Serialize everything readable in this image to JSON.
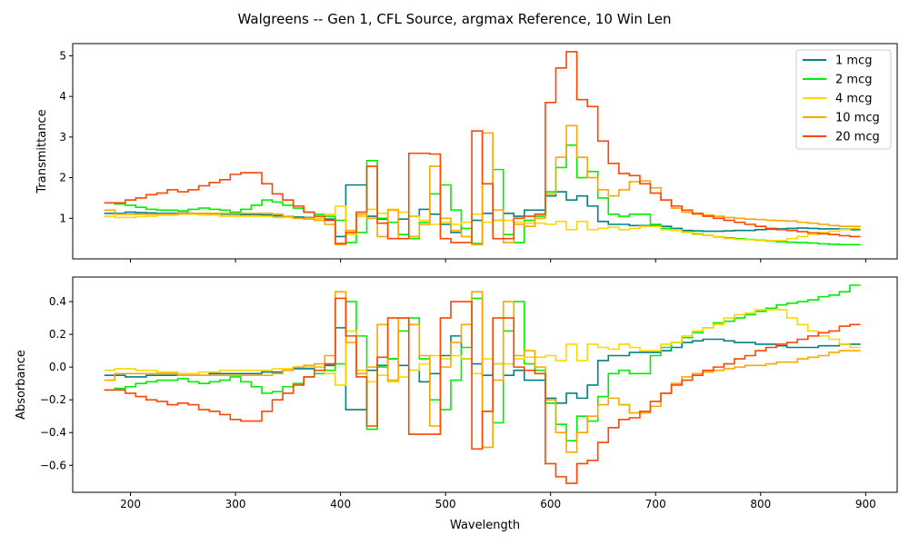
{
  "figure_title": "Walgreens -- Gen 1, CFL Source, argmax Reference, 10 Win Len",
  "chart_data": [
    {
      "type": "line",
      "step": true,
      "xlabel": "",
      "ylabel": "Transmittance",
      "xlim": [
        145,
        930
      ],
      "ylim": [
        0.0,
        5.3
      ],
      "xticks": [
        200,
        300,
        400,
        500,
        600,
        700,
        800,
        900
      ],
      "show_xtick_labels": false,
      "yticks": [
        1,
        2,
        3,
        4,
        5
      ],
      "grid": false,
      "legend": "top-right",
      "x": [
        180,
        190,
        200,
        210,
        220,
        230,
        240,
        250,
        260,
        270,
        280,
        290,
        300,
        310,
        320,
        330,
        340,
        350,
        360,
        370,
        380,
        390,
        400,
        410,
        420,
        430,
        440,
        450,
        460,
        470,
        480,
        490,
        500,
        510,
        520,
        530,
        540,
        550,
        560,
        570,
        580,
        590,
        600,
        610,
        620,
        630,
        640,
        650,
        660,
        670,
        680,
        690,
        700,
        710,
        720,
        730,
        740,
        750,
        760,
        770,
        780,
        790,
        800,
        810,
        820,
        830,
        840,
        850,
        860,
        870,
        880,
        890
      ],
      "series": [
        {
          "name": "1 mcg",
          "color": "#008080",
          "values": [
            1.12,
            1.12,
            1.15,
            1.14,
            1.13,
            1.12,
            1.12,
            1.13,
            1.12,
            1.12,
            1.1,
            1.1,
            1.1,
            1.09,
            1.09,
            1.08,
            1.06,
            1.04,
            1.03,
            1.02,
            1.0,
            0.98,
            0.55,
            1.82,
            1.82,
            1.05,
            0.98,
            0.9,
            0.98,
            1.05,
            1.22,
            1.1,
            0.85,
            0.65,
            0.9,
            0.95,
            1.12,
            0.95,
            1.12,
            1.05,
            1.2,
            1.2,
            1.55,
            1.65,
            1.45,
            1.55,
            1.3,
            0.92,
            0.85,
            0.85,
            0.82,
            0.82,
            0.82,
            0.8,
            0.75,
            0.7,
            0.69,
            0.68,
            0.68,
            0.69,
            0.7,
            0.7,
            0.72,
            0.73,
            0.74,
            0.75,
            0.76,
            0.75,
            0.74,
            0.74,
            0.73,
            0.72
          ]
        },
        {
          "name": "2 mcg",
          "color": "#00ee00",
          "values": [
            1.38,
            1.35,
            1.32,
            1.27,
            1.22,
            1.2,
            1.2,
            1.18,
            1.22,
            1.25,
            1.22,
            1.2,
            1.15,
            1.22,
            1.32,
            1.45,
            1.4,
            1.32,
            1.25,
            1.15,
            1.1,
            1.05,
            0.95,
            0.4,
            0.65,
            2.42,
            1.0,
            0.9,
            0.6,
            0.5,
            0.9,
            1.6,
            1.82,
            1.2,
            0.75,
            0.38,
            1.85,
            2.2,
            0.6,
            0.4,
            0.95,
            1.05,
            1.65,
            2.25,
            2.8,
            2.0,
            2.15,
            1.5,
            1.1,
            1.05,
            1.1,
            1.1,
            0.85,
            0.75,
            0.7,
            0.66,
            0.62,
            0.58,
            0.54,
            0.52,
            0.5,
            0.48,
            0.46,
            0.44,
            0.42,
            0.41,
            0.4,
            0.39,
            0.37,
            0.36,
            0.35,
            0.35
          ]
        },
        {
          "name": "4 mcg",
          "color": "#ffd700",
          "values": [
            1.05,
            1.02,
            1.02,
            1.04,
            1.05,
            1.08,
            1.08,
            1.1,
            1.1,
            1.08,
            1.08,
            1.05,
            1.05,
            1.05,
            1.05,
            1.05,
            1.02,
            1.02,
            1.0,
            1.0,
            1.0,
            1.1,
            1.3,
            0.6,
            1.05,
            1.22,
            1.12,
            1.22,
            1.15,
            1.05,
            0.95,
            0.85,
            0.9,
            0.85,
            0.9,
            1.1,
            0.9,
            0.95,
            0.95,
            0.9,
            0.88,
            0.88,
            0.85,
            0.92,
            0.72,
            0.92,
            0.72,
            0.75,
            0.78,
            0.72,
            0.75,
            0.8,
            0.8,
            0.72,
            0.7,
            0.65,
            0.6,
            0.58,
            0.55,
            0.5,
            0.48,
            0.47,
            0.45,
            0.45,
            0.45,
            0.5,
            0.55,
            0.6,
            0.65,
            0.68,
            0.72,
            0.75
          ]
        },
        {
          "name": "10 mcg",
          "color": "#ffa500",
          "values": [
            1.2,
            1.1,
            1.1,
            1.1,
            1.1,
            1.1,
            1.1,
            1.12,
            1.12,
            1.12,
            1.12,
            1.12,
            1.12,
            1.12,
            1.12,
            1.12,
            1.1,
            1.05,
            1.0,
            0.98,
            0.95,
            0.85,
            0.35,
            0.7,
            1.1,
            1.0,
            0.55,
            1.2,
            0.5,
            0.55,
            0.85,
            2.28,
            1.0,
            0.7,
            0.55,
            0.35,
            3.1,
            1.2,
            0.4,
            0.85,
            0.8,
            1.0,
            1.6,
            2.5,
            3.28,
            2.5,
            2.0,
            1.7,
            1.55,
            1.7,
            1.9,
            1.92,
            1.75,
            1.45,
            1.25,
            1.15,
            1.1,
            1.08,
            1.05,
            1.02,
            1.0,
            0.98,
            0.97,
            0.95,
            0.94,
            0.93,
            0.9,
            0.88,
            0.85,
            0.82,
            0.8,
            0.8
          ]
        },
        {
          "name": "20 mcg",
          "color": "#ff4500",
          "values": [
            1.38,
            1.38,
            1.45,
            1.5,
            1.58,
            1.62,
            1.7,
            1.65,
            1.7,
            1.8,
            1.88,
            1.95,
            2.08,
            2.12,
            2.12,
            1.85,
            1.6,
            1.45,
            1.3,
            1.15,
            1.05,
            0.95,
            0.38,
            0.65,
            1.15,
            2.28,
            0.88,
            0.5,
            0.5,
            2.6,
            2.6,
            2.58,
            0.5,
            0.4,
            0.4,
            3.15,
            1.85,
            0.5,
            0.5,
            1.0,
            1.05,
            1.1,
            3.85,
            4.7,
            5.1,
            3.92,
            3.75,
            2.9,
            2.35,
            2.1,
            2.05,
            1.85,
            1.62,
            1.45,
            1.3,
            1.2,
            1.12,
            1.05,
            1.0,
            0.95,
            0.9,
            0.85,
            0.8,
            0.75,
            0.72,
            0.7,
            0.67,
            0.64,
            0.62,
            0.6,
            0.57,
            0.55
          ]
        }
      ]
    },
    {
      "type": "line",
      "step": true,
      "xlabel": "Wavelength",
      "ylabel": "Absorbance",
      "xlim": [
        145,
        930
      ],
      "ylim": [
        -0.765,
        0.55
      ],
      "xticks": [
        200,
        300,
        400,
        500,
        600,
        700,
        800,
        900
      ],
      "xtick_labels": [
        "200",
        "300",
        "400",
        "500",
        "600",
        "700",
        "800",
        "900"
      ],
      "yticks": [
        -0.6,
        -0.4,
        -0.2,
        0.0,
        0.2,
        0.4
      ],
      "ytick_labels": [
        "−0.6",
        "−0.4",
        "−0.2",
        "0.0",
        "0.2",
        "0.4"
      ],
      "grid": false,
      "x": [
        180,
        190,
        200,
        210,
        220,
        230,
        240,
        250,
        260,
        270,
        280,
        290,
        300,
        310,
        320,
        330,
        340,
        350,
        360,
        370,
        380,
        390,
        400,
        410,
        420,
        430,
        440,
        450,
        460,
        470,
        480,
        490,
        500,
        510,
        520,
        530,
        540,
        550,
        560,
        570,
        580,
        590,
        600,
        610,
        620,
        630,
        640,
        650,
        660,
        670,
        680,
        690,
        700,
        710,
        720,
        730,
        740,
        750,
        760,
        770,
        780,
        790,
        800,
        810,
        820,
        830,
        840,
        850,
        860,
        870,
        880,
        890
      ],
      "series": [
        {
          "name": "1 mcg",
          "color": "#008080",
          "values": [
            -0.05,
            -0.05,
            -0.06,
            -0.06,
            -0.05,
            -0.05,
            -0.05,
            -0.05,
            -0.05,
            -0.05,
            -0.04,
            -0.04,
            -0.04,
            -0.04,
            -0.04,
            -0.03,
            -0.03,
            -0.02,
            -0.01,
            -0.01,
            0.0,
            0.01,
            0.24,
            -0.26,
            -0.26,
            -0.02,
            0.01,
            0.05,
            0.01,
            -0.02,
            -0.09,
            -0.04,
            0.07,
            0.19,
            0.05,
            0.02,
            -0.05,
            0.02,
            -0.05,
            -0.02,
            -0.08,
            -0.08,
            -0.19,
            -0.22,
            -0.16,
            -0.19,
            -0.11,
            0.04,
            0.07,
            0.07,
            0.09,
            0.09,
            0.09,
            0.1,
            0.12,
            0.15,
            0.16,
            0.17,
            0.17,
            0.16,
            0.15,
            0.15,
            0.14,
            0.14,
            0.13,
            0.12,
            0.12,
            0.12,
            0.13,
            0.13,
            0.14,
            0.14
          ]
        },
        {
          "name": "2 mcg",
          "color": "#00ee00",
          "values": [
            -0.14,
            -0.13,
            -0.12,
            -0.1,
            -0.09,
            -0.08,
            -0.08,
            -0.07,
            -0.09,
            -0.1,
            -0.09,
            -0.08,
            -0.06,
            -0.09,
            -0.12,
            -0.16,
            -0.15,
            -0.12,
            -0.1,
            -0.06,
            -0.04,
            -0.02,
            0.02,
            0.4,
            0.19,
            -0.38,
            0.0,
            0.05,
            0.22,
            0.3,
            0.05,
            -0.2,
            -0.26,
            -0.08,
            0.12,
            0.42,
            -0.27,
            -0.34,
            0.22,
            0.4,
            0.02,
            -0.02,
            -0.22,
            -0.35,
            -0.45,
            -0.3,
            -0.33,
            -0.18,
            -0.04,
            -0.02,
            -0.04,
            -0.04,
            0.07,
            0.12,
            0.15,
            0.18,
            0.21,
            0.24,
            0.27,
            0.28,
            0.3,
            0.32,
            0.34,
            0.36,
            0.38,
            0.39,
            0.4,
            0.41,
            0.43,
            0.44,
            0.46,
            0.5
          ]
        },
        {
          "name": "4 mcg",
          "color": "#ffd700",
          "values": [
            -0.02,
            -0.01,
            -0.01,
            -0.02,
            -0.02,
            -0.03,
            -0.03,
            -0.04,
            -0.04,
            -0.03,
            -0.03,
            -0.02,
            -0.02,
            -0.02,
            -0.02,
            -0.02,
            -0.01,
            -0.01,
            0.0,
            0.0,
            0.0,
            -0.04,
            -0.11,
            0.22,
            -0.02,
            -0.09,
            -0.05,
            -0.09,
            -0.06,
            -0.02,
            0.02,
            0.07,
            0.05,
            0.07,
            0.05,
            -0.04,
            0.05,
            0.02,
            0.02,
            0.05,
            0.06,
            0.06,
            0.07,
            0.04,
            0.14,
            0.04,
            0.14,
            0.12,
            0.11,
            0.14,
            0.12,
            0.1,
            0.1,
            0.14,
            0.15,
            0.19,
            0.22,
            0.24,
            0.26,
            0.3,
            0.32,
            0.33,
            0.35,
            0.35,
            0.35,
            0.3,
            0.26,
            0.22,
            0.19,
            0.17,
            0.14,
            0.12
          ]
        },
        {
          "name": "10 mcg",
          "color": "#ffa500",
          "values": [
            -0.08,
            -0.04,
            -0.04,
            -0.04,
            -0.04,
            -0.04,
            -0.04,
            -0.05,
            -0.05,
            -0.05,
            -0.05,
            -0.05,
            -0.05,
            -0.05,
            -0.05,
            -0.05,
            -0.04,
            -0.02,
            0.0,
            0.01,
            0.02,
            0.07,
            0.46,
            0.15,
            -0.04,
            0.0,
            0.26,
            -0.08,
            0.3,
            0.26,
            0.07,
            -0.36,
            0.0,
            0.15,
            0.26,
            0.46,
            -0.49,
            -0.08,
            0.4,
            0.07,
            0.1,
            0.0,
            -0.2,
            -0.4,
            -0.52,
            -0.4,
            -0.3,
            -0.23,
            -0.19,
            -0.23,
            -0.28,
            -0.28,
            -0.24,
            -0.16,
            -0.1,
            -0.06,
            -0.04,
            -0.03,
            -0.02,
            -0.01,
            0.0,
            0.01,
            0.01,
            0.02,
            0.03,
            0.03,
            0.05,
            0.06,
            0.07,
            0.09,
            0.1,
            0.1
          ]
        },
        {
          "name": "20 mcg",
          "color": "#ff4500",
          "values": [
            -0.14,
            -0.14,
            -0.16,
            -0.18,
            -0.2,
            -0.21,
            -0.23,
            -0.22,
            -0.23,
            -0.26,
            -0.27,
            -0.29,
            -0.32,
            -0.33,
            -0.33,
            -0.27,
            -0.2,
            -0.16,
            -0.11,
            -0.06,
            -0.02,
            0.02,
            0.42,
            0.19,
            -0.06,
            -0.36,
            0.06,
            0.3,
            0.3,
            -0.41,
            -0.41,
            -0.41,
            0.3,
            0.4,
            0.4,
            -0.5,
            -0.27,
            0.3,
            0.3,
            0.0,
            -0.02,
            -0.04,
            -0.59,
            -0.67,
            -0.71,
            -0.59,
            -0.57,
            -0.46,
            -0.37,
            -0.32,
            -0.31,
            -0.27,
            -0.21,
            -0.16,
            -0.11,
            -0.08,
            -0.05,
            -0.02,
            0.0,
            0.02,
            0.05,
            0.07,
            0.1,
            0.12,
            0.14,
            0.15,
            0.17,
            0.19,
            0.21,
            0.22,
            0.25,
            0.26
          ]
        }
      ]
    }
  ]
}
